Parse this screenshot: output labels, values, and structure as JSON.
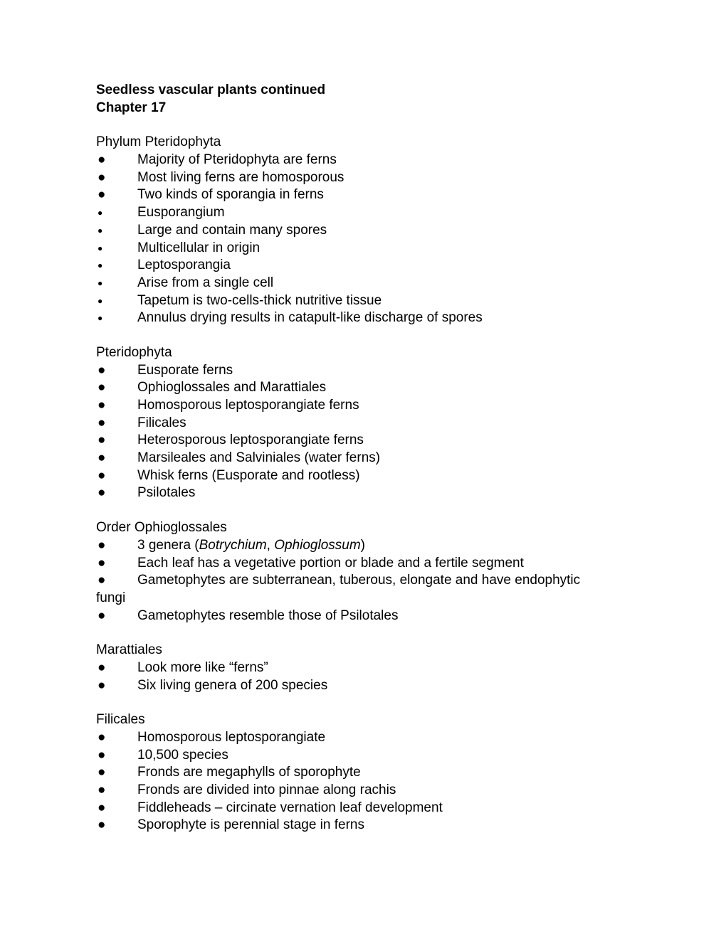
{
  "title_line1": "Seedless vascular plants continued",
  "title_line2": "Chapter 17",
  "sections": {
    "s1": {
      "heading": "Phylum Pteridophyta",
      "items": [
        {
          "bullet": "large",
          "text": "Majority of Pteridophyta are ferns"
        },
        {
          "bullet": "large",
          "text": "Most living ferns are homosporous"
        },
        {
          "bullet": "large",
          "text": "Two kinds of sporangia in ferns"
        },
        {
          "bullet": "small",
          "text": "Eusporangium"
        },
        {
          "bullet": "small",
          "text": "Large and contain many spores"
        },
        {
          "bullet": "small",
          "text": "Multicellular in origin"
        },
        {
          "bullet": "small",
          "text": "Leptosporangia"
        },
        {
          "bullet": "small",
          "text": "Arise from a single cell"
        },
        {
          "bullet": "small",
          "text": "Tapetum is two-cells-thick nutritive tissue"
        },
        {
          "bullet": "small",
          "text": "Annulus drying results in catapult-like discharge of spores"
        }
      ]
    },
    "s2": {
      "heading": "Pteridophyta",
      "items": [
        {
          "bullet": "large",
          "text": "Eusporate ferns"
        },
        {
          "bullet": "large",
          "text": "Ophioglossales and Marattiales"
        },
        {
          "bullet": "large",
          "text": "Homosporous leptosporangiate ferns"
        },
        {
          "bullet": "large",
          "text": "Filicales"
        },
        {
          "bullet": "large",
          "text": "Heterosporous leptosporangiate ferns"
        },
        {
          "bullet": "large",
          "text": "Marsileales and Salviniales (water ferns)"
        },
        {
          "bullet": "large",
          "text": "Whisk ferns (Eusporate and rootless)"
        },
        {
          "bullet": "large",
          "text": "Psilotales"
        }
      ]
    },
    "s3": {
      "heading": "Order Ophioglossales",
      "items": [
        {
          "bullet": "large",
          "prefix": "3 genera (",
          "italic1": "Botrychium",
          "mid": ", ",
          "italic2": "Ophioglossum",
          "suffix": ")"
        },
        {
          "bullet": "large",
          "text": "Each leaf has a vegetative portion or blade and a fertile segment"
        },
        {
          "bullet": "large",
          "text": "Gametophytes are subterranean, tuberous, elongate and have endophytic",
          "wrap": "fungi"
        },
        {
          "bullet": "large",
          "text": "Gametophytes resemble those of Psilotales"
        }
      ]
    },
    "s4": {
      "heading": "Marattiales",
      "items": [
        {
          "bullet": "large",
          "text": "Look more like “ferns”"
        },
        {
          "bullet": "large",
          "text": "Six living genera of 200 species"
        }
      ]
    },
    "s5": {
      "heading": "Filicales",
      "items": [
        {
          "bullet": "large",
          "text": "Homosporous leptosporangiate"
        },
        {
          "bullet": "large",
          "text": "10,500 species"
        },
        {
          "bullet": "large",
          "text": "Fronds are megaphylls of sporophyte"
        },
        {
          "bullet": "large",
          "text": "Fronds are divided into pinnae along rachis"
        },
        {
          "bullet": "large",
          "text": "Fiddleheads – circinate vernation leaf development"
        },
        {
          "bullet": "large",
          "text": "Sporophyte is perennial stage in ferns"
        }
      ]
    }
  },
  "bullet_glyph": "●"
}
